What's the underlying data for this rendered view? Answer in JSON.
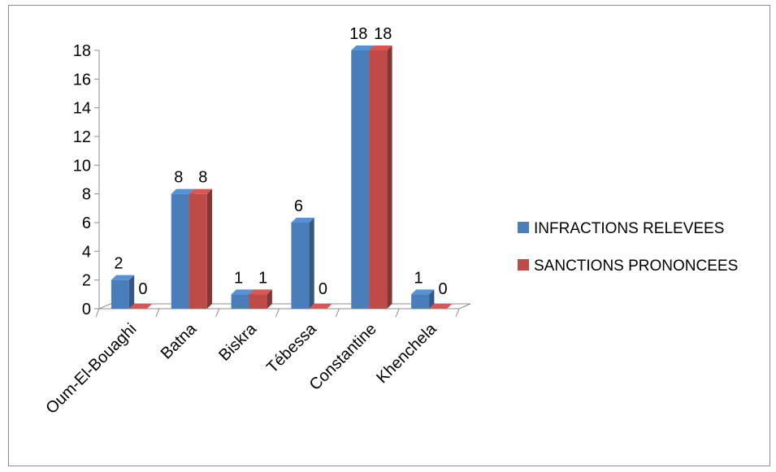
{
  "chart_data": {
    "type": "bar",
    "title": "",
    "xlabel": "",
    "ylabel": "",
    "categories": [
      "Oum-El-Bouaghi",
      "Batna",
      "Biskra",
      "Tébessa",
      "Constantine",
      "Khenchela"
    ],
    "series": [
      {
        "name": "INFRACTIONS  RELEVEES",
        "values": [
          2,
          8,
          1,
          6,
          18,
          1
        ],
        "color": "#4a7ebb"
      },
      {
        "name": "SANCTIONS PRONONCEES",
        "values": [
          0,
          8,
          1,
          0,
          18,
          0
        ],
        "color": "#be4b48"
      }
    ],
    "ylim": [
      0,
      18
    ],
    "yticks": [
      0,
      2,
      4,
      6,
      8,
      10,
      12,
      14,
      16,
      18
    ],
    "grid": false,
    "legend_position": "right",
    "style": "3d-clustered-column",
    "data_labels": true
  }
}
